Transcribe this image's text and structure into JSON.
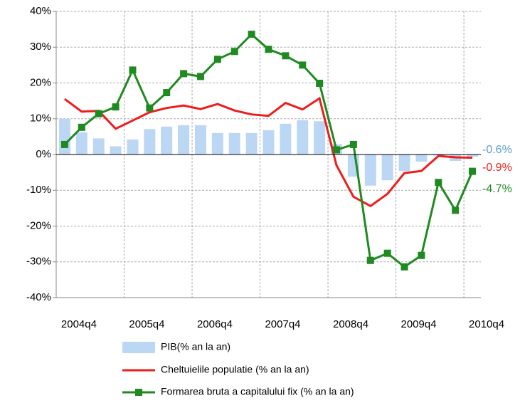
{
  "chart_data": {
    "type": "bar-line",
    "categories": [
      "2004q4",
      null,
      null,
      null,
      "2005q4",
      null,
      null,
      null,
      "2006q4",
      null,
      null,
      null,
      "2007q4",
      null,
      null,
      null,
      "2008q4",
      null,
      null,
      null,
      "2009q4",
      null,
      null,
      null,
      "2010q4"
    ],
    "series": [
      {
        "name": "PIB(% an la an)",
        "type": "bar",
        "color": "#bcd7f4",
        "label_color": "#5b9bd5",
        "values": [
          10,
          6.2,
          4.5,
          2.3,
          4.2,
          7.1,
          7.8,
          8.2,
          8.2,
          6,
          6,
          6,
          6.8,
          8.6,
          9.6,
          9.3,
          2.9,
          -6.2,
          -8.7,
          -7.2,
          -4.6,
          -2,
          -0.3,
          -1.8,
          -0.6
        ],
        "value_labels": [
          null,
          null,
          null,
          null,
          null,
          null,
          null,
          null,
          null,
          null,
          null,
          null,
          null,
          null,
          null,
          null,
          null,
          null,
          null,
          null,
          null,
          null,
          null,
          null,
          "-0.6%"
        ]
      },
      {
        "name": "Cheltuielile populatie (% an la an)",
        "type": "line",
        "color": "#ee1c1c",
        "label_color": "#ee1c1c",
        "values": [
          15.5,
          12,
          12.2,
          7.2,
          9.5,
          11.8,
          13,
          13.7,
          12.7,
          14.1,
          12.3,
          11.2,
          10.8,
          14.4,
          12.6,
          15.7,
          -3,
          -11.8,
          -14.4,
          -11,
          -5.2,
          -4.6,
          -0.4,
          -0.8,
          -0.9
        ],
        "value_labels": [
          null,
          null,
          null,
          null,
          null,
          null,
          null,
          null,
          null,
          null,
          null,
          null,
          null,
          null,
          null,
          null,
          null,
          null,
          null,
          null,
          null,
          null,
          null,
          null,
          "-0.9%"
        ]
      },
      {
        "name": "Formarea bruta a capitalului fix (% an la an)",
        "type": "line-marker",
        "color": "#1f8a1f",
        "label_color": "#1f8a1f",
        "values": [
          2.8,
          7.6,
          11.4,
          13.3,
          23.6,
          13,
          17.3,
          22.6,
          21.8,
          26.6,
          28.8,
          33.6,
          29.4,
          27.6,
          25,
          19.9,
          1.3,
          2.8,
          -29.6,
          -27.6,
          -31.4,
          -28.2,
          -7.8,
          -15.6,
          -4.7
        ],
        "value_labels": [
          null,
          null,
          null,
          null,
          null,
          null,
          null,
          null,
          null,
          null,
          null,
          null,
          null,
          null,
          null,
          null,
          null,
          null,
          null,
          null,
          null,
          null,
          null,
          null,
          "-4.7%"
        ]
      }
    ],
    "ylim": [
      -40,
      40
    ],
    "yticks": [
      {
        "value": -40,
        "label": "-40%"
      },
      {
        "value": -30,
        "label": "-30%"
      },
      {
        "value": -20,
        "label": "-20%"
      },
      {
        "value": -10,
        "label": "-10%"
      },
      {
        "value": 0,
        "label": "0%"
      },
      {
        "value": 10,
        "label": "10%"
      },
      {
        "value": 20,
        "label": "20%"
      },
      {
        "value": 30,
        "label": "30%"
      },
      {
        "value": 40,
        "label": "40%"
      }
    ],
    "grid": true,
    "legend": "bottom"
  }
}
